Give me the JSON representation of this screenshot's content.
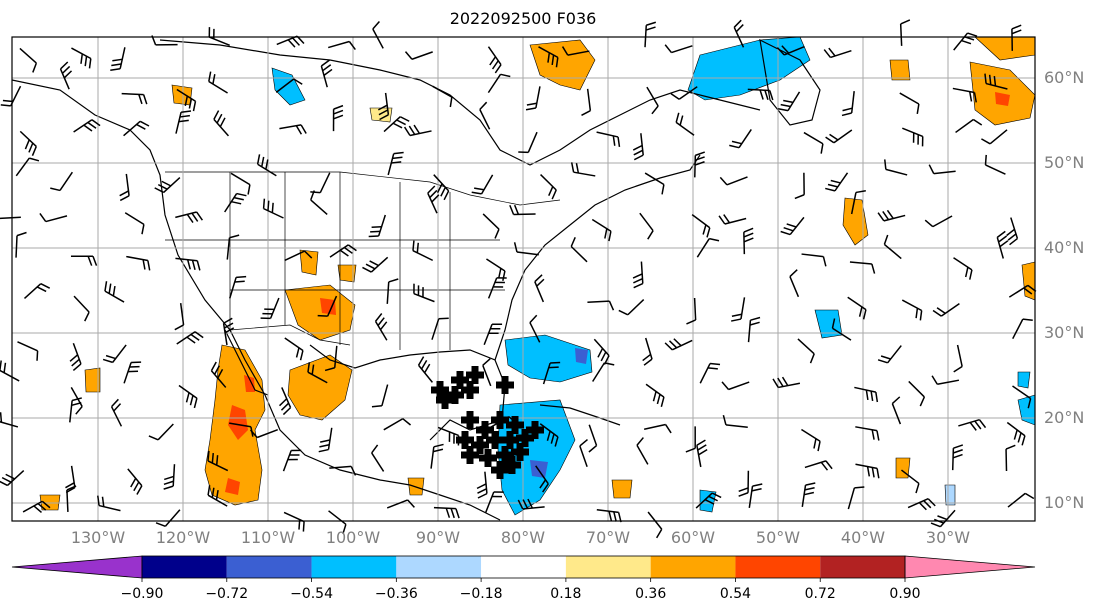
{
  "title": "2022092500 F036",
  "lat_labels": [
    "60°N",
    "50°N",
    "40°N",
    "30°N",
    "20°N",
    "10°N"
  ],
  "lon_labels": [
    "130°W",
    "120°W",
    "110°W",
    "100°W",
    "90°W",
    "80°W",
    "70°W",
    "60°W",
    "50°W",
    "40°W",
    "30°W"
  ],
  "colorbar": {
    "tick_labels": [
      "−0.90",
      "−0.72",
      "−0.54",
      "−0.36",
      "−0.18",
      "0.18",
      "0.36",
      "0.54",
      "0.72",
      "0.90"
    ],
    "colors": [
      "#9932cc",
      "#00008b",
      "#3b5fd2",
      "#00bfff",
      "#add8ff",
      "#ffffff",
      "#ffe98a",
      "#ffa500",
      "#ff4500",
      "#b22222",
      "#ff88b0"
    ]
  },
  "colors": {
    "land_outline": "#000000",
    "grid": "#aaaaaa",
    "barb": "#000000",
    "positive": "#ffa500",
    "negative": "#00bfff",
    "label_gray": "#808080"
  }
}
